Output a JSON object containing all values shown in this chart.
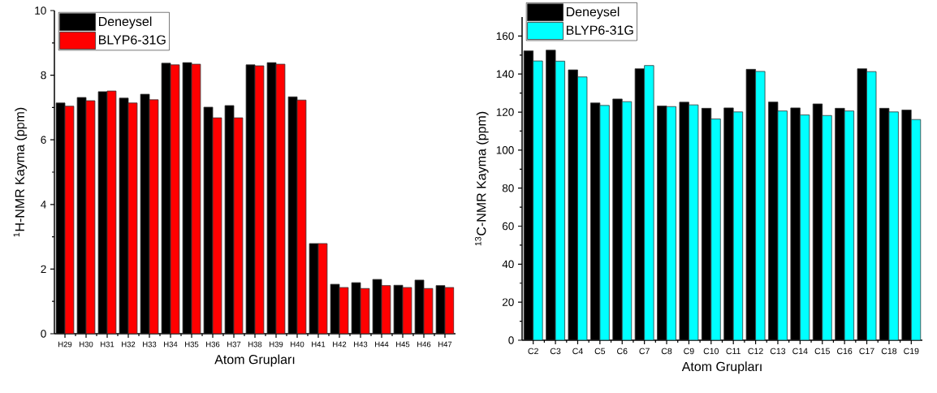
{
  "chart_data": [
    {
      "type": "bar",
      "xlabel": "Atom Grupları",
      "ylabel": "$^{1}$H-NMR Kayma (ppm)",
      "categories": [
        "H29",
        "H30",
        "H31",
        "H32",
        "H33",
        "H34",
        "H35",
        "H36",
        "H37",
        "H38",
        "H39",
        "H40",
        "H41",
        "H42",
        "H43",
        "H44",
        "H45",
        "H46",
        "H47"
      ],
      "series": [
        {
          "name": "Deneysel",
          "color": "#000000",
          "values": [
            7.14,
            7.31,
            7.49,
            7.29,
            7.41,
            8.37,
            8.39,
            7.01,
            7.06,
            8.32,
            8.39,
            7.33,
            2.79,
            1.53,
            1.58,
            1.68,
            1.5,
            1.66,
            1.49
          ]
        },
        {
          "name": "BLYP6-31G",
          "color": "#ff0000",
          "values": [
            7.04,
            7.21,
            7.51,
            7.14,
            7.24,
            8.32,
            8.34,
            6.68,
            6.68,
            8.29,
            8.34,
            7.23,
            2.79,
            1.43,
            1.4,
            1.49,
            1.43,
            1.4,
            1.43
          ]
        }
      ],
      "ylim": [
        0,
        10
      ],
      "yticks": [
        0,
        2,
        4,
        6,
        8,
        10
      ],
      "legend": "top left"
    },
    {
      "type": "bar",
      "xlabel": "Atom Grupları",
      "ylabel": "$^{13}$C-NMR Kayma (ppm)",
      "categories": [
        "C2",
        "C3",
        "C4",
        "C5",
        "C6",
        "C7",
        "C8",
        "C9",
        "C10",
        "C11",
        "C12",
        "C13",
        "C14",
        "C15",
        "C16",
        "C17",
        "C18",
        "C19"
      ],
      "series": [
        {
          "name": "Deneysel",
          "color": "#000000",
          "values": [
            152.2,
            152.6,
            142.2,
            124.8,
            126.9,
            142.8,
            123.2,
            125.2,
            122.0,
            122.2,
            142.5,
            125.3,
            122.2,
            124.3,
            122.0,
            142.8,
            122.0,
            121.1
          ]
        },
        {
          "name": "BLYP6-31G",
          "color": "#00ffff",
          "values": [
            146.9,
            146.8,
            138.5,
            123.5,
            125.5,
            144.5,
            122.9,
            123.8,
            116.4,
            120.1,
            141.4,
            120.6,
            118.5,
            118.2,
            120.6,
            141.3,
            120.1,
            116.1
          ]
        }
      ],
      "ylim": [
        0,
        170
      ],
      "yticks": [
        0,
        20,
        40,
        60,
        80,
        100,
        120,
        140,
        160
      ],
      "legend": "top left"
    }
  ]
}
